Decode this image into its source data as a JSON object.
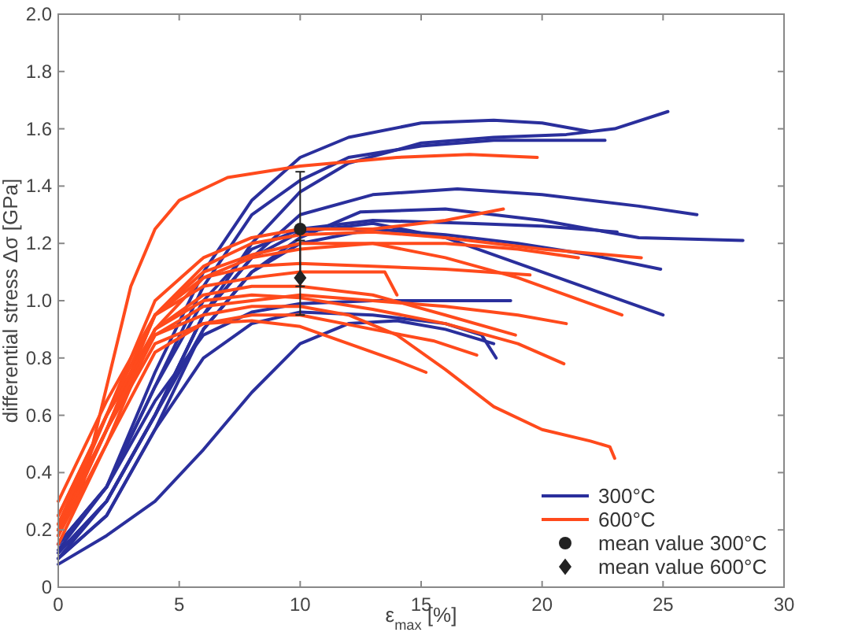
{
  "chart_data": {
    "type": "line",
    "xlabel": "ε$_{max}$ [%]",
    "ylabel": "differential stress  Δσ [GPa]",
    "xlim": [
      0,
      30
    ],
    "xticks": [
      0,
      5,
      10,
      15,
      20,
      25,
      30
    ],
    "ylim": [
      0,
      2
    ],
    "yticks": [
      0,
      0.2,
      0.4,
      0.6,
      0.8,
      {
        "value": 1,
        "label": "1.0"
      },
      1.2,
      1.4,
      1.6,
      1.8,
      {
        "value": 2,
        "label": "2.0"
      }
    ],
    "grid": false,
    "legend": "bottom right",
    "line_style": "solid",
    "series": [
      {
        "name": "300°C",
        "color": "#2a2f9c",
        "x": [
          0,
          2,
          4,
          6,
          8,
          10,
          12,
          15,
          18,
          20,
          22
        ],
        "values": [
          0.15,
          0.35,
          0.75,
          1.1,
          1.35,
          1.5,
          1.57,
          1.62,
          1.63,
          1.62,
          1.59
        ]
      },
      {
        "color": "#2a2f9c",
        "x": [
          0,
          2,
          4,
          6,
          8,
          10,
          12,
          15,
          18,
          21,
          23,
          25.2
        ],
        "values": [
          0.12,
          0.3,
          0.6,
          0.95,
          1.2,
          1.38,
          1.48,
          1.55,
          1.57,
          1.58,
          1.6,
          1.66
        ]
      },
      {
        "color": "#2a2f9c",
        "x": [
          0,
          2,
          4,
          6,
          8,
          10,
          12,
          15,
          18,
          22.6
        ],
        "values": [
          0.13,
          0.35,
          0.7,
          1.05,
          1.3,
          1.42,
          1.5,
          1.54,
          1.56,
          1.56
        ]
      },
      {
        "color": "#2a2f9c",
        "x": [
          0,
          2,
          4,
          6,
          8,
          10,
          13,
          16.5,
          20,
          24,
          26.4
        ],
        "values": [
          0.12,
          0.3,
          0.6,
          0.95,
          1.15,
          1.3,
          1.37,
          1.39,
          1.37,
          1.33,
          1.3
        ]
      },
      {
        "color": "#2a2f9c",
        "x": [
          0,
          2,
          4,
          6,
          8,
          10,
          12.5,
          16,
          20,
          24,
          28.3
        ],
        "values": [
          0.1,
          0.25,
          0.55,
          0.9,
          1.1,
          1.22,
          1.31,
          1.32,
          1.28,
          1.22,
          1.21
        ]
      },
      {
        "color": "#2a2f9c",
        "x": [
          0,
          2,
          4,
          6,
          8,
          10,
          13,
          16,
          19,
          22,
          25
        ],
        "values": [
          0.1,
          0.3,
          0.6,
          0.95,
          1.15,
          1.24,
          1.27,
          1.22,
          1.13,
          1.04,
          0.95
        ]
      },
      {
        "color": "#2a2f9c",
        "x": [
          0,
          2,
          4,
          6,
          8,
          10,
          13,
          17,
          20,
          23.1
        ],
        "values": [
          0.15,
          0.35,
          0.7,
          1.0,
          1.18,
          1.25,
          1.28,
          1.27,
          1.26,
          1.24
        ]
      },
      {
        "color": "#2a2f9c",
        "x": [
          0,
          2,
          4,
          6,
          8,
          10,
          13,
          16,
          19,
          22,
          24.9
        ],
        "values": [
          0.12,
          0.3,
          0.6,
          0.9,
          1.1,
          1.2,
          1.25,
          1.23,
          1.2,
          1.16,
          1.11
        ]
      },
      {
        "color": "#2a2f9c",
        "x": [
          0,
          2,
          4,
          6,
          8,
          10,
          13,
          16,
          17.5,
          18.1
        ],
        "values": [
          0.1,
          0.25,
          0.55,
          0.8,
          0.92,
          0.96,
          0.95,
          0.92,
          0.88,
          0.8
        ]
      },
      {
        "color": "#2a2f9c",
        "x": [
          0,
          2,
          4,
          6,
          8,
          10,
          13,
          16,
          18.7
        ],
        "values": [
          0.15,
          0.35,
          0.65,
          0.88,
          0.96,
          0.99,
          1.0,
          1.0,
          1.0
        ]
      },
      {
        "color": "#2a2f9c",
        "x": [
          0,
          2,
          4,
          6,
          8,
          10,
          12,
          14,
          16,
          18
        ],
        "values": [
          0.08,
          0.18,
          0.3,
          0.48,
          0.68,
          0.85,
          0.92,
          0.93,
          0.9,
          0.85
        ]
      },
      {
        "name": "600°C",
        "color": "#ff4a1c",
        "x": [
          0,
          1,
          2,
          3,
          4,
          5,
          7,
          10,
          14,
          17,
          19.8
        ],
        "values": [
          0.2,
          0.35,
          0.7,
          1.05,
          1.25,
          1.35,
          1.43,
          1.47,
          1.5,
          1.51,
          1.5
        ]
      },
      {
        "color": "#ff4a1c",
        "x": [
          0,
          2,
          4,
          6,
          8,
          10,
          13,
          16,
          18.4
        ],
        "values": [
          0.25,
          0.6,
          1.0,
          1.15,
          1.22,
          1.25,
          1.25,
          1.28,
          1.32
        ]
      },
      {
        "color": "#ff4a1c",
        "x": [
          0,
          2,
          4,
          6,
          8,
          10,
          13,
          16,
          20,
          24.1
        ],
        "values": [
          0.2,
          0.55,
          0.95,
          1.12,
          1.2,
          1.23,
          1.24,
          1.22,
          1.18,
          1.15
        ]
      },
      {
        "color": "#ff4a1c",
        "x": [
          0,
          2,
          4,
          6,
          8,
          10,
          13,
          16,
          19,
          23.3
        ],
        "values": [
          0.18,
          0.55,
          0.95,
          1.1,
          1.16,
          1.2,
          1.2,
          1.15,
          1.08,
          0.95
        ]
      },
      {
        "color": "#ff4a1c",
        "x": [
          0,
          2,
          4,
          6,
          8,
          10,
          12,
          14,
          16,
          18,
          20,
          22,
          22.8,
          23
        ],
        "values": [
          0.2,
          0.6,
          0.88,
          0.95,
          0.98,
          0.98,
          0.95,
          0.88,
          0.76,
          0.63,
          0.55,
          0.51,
          0.49,
          0.45
        ]
      },
      {
        "color": "#ff4a1c",
        "x": [
          0,
          2,
          4,
          6,
          8,
          10,
          13,
          16,
          19,
          20.9
        ],
        "values": [
          0.25,
          0.6,
          0.9,
          1.0,
          1.02,
          1.01,
          0.97,
          0.92,
          0.85,
          0.78
        ]
      },
      {
        "color": "#ff4a1c",
        "x": [
          0,
          2,
          4,
          6,
          8,
          10,
          13,
          16,
          19,
          21
        ],
        "values": [
          0.22,
          0.55,
          0.88,
          0.98,
          1.0,
          1.02,
          1.0,
          0.98,
          0.95,
          0.92
        ]
      },
      {
        "color": "#ff4a1c",
        "x": [
          0,
          2,
          4,
          6,
          8,
          10,
          13,
          15.5,
          17.3
        ],
        "values": [
          0.15,
          0.5,
          0.82,
          0.92,
          0.95,
          0.95,
          0.9,
          0.86,
          0.81
        ]
      },
      {
        "color": "#ff4a1c",
        "x": [
          0,
          2,
          4,
          6,
          8,
          10,
          12,
          14,
          15.2
        ],
        "values": [
          0.2,
          0.55,
          0.85,
          0.92,
          0.93,
          0.91,
          0.85,
          0.79,
          0.75
        ]
      },
      {
        "color": "#ff4a1c",
        "x": [
          0,
          2,
          4,
          6,
          8,
          10,
          13,
          16,
          18.9
        ],
        "values": [
          0.18,
          0.55,
          0.9,
          1.02,
          1.05,
          1.05,
          1.02,
          0.95,
          0.88
        ]
      },
      {
        "color": "#ff4a1c",
        "x": [
          0,
          2,
          4,
          6,
          8,
          10,
          13,
          16,
          19.5
        ],
        "values": [
          0.22,
          0.6,
          0.95,
          1.08,
          1.12,
          1.13,
          1.12,
          1.11,
          1.09
        ]
      },
      {
        "color": "#ff4a1c",
        "x": [
          0,
          2,
          4,
          6,
          8,
          10,
          13.5,
          14
        ],
        "values": [
          0.3,
          0.65,
          0.95,
          1.05,
          1.08,
          1.1,
          1.1,
          1.02
        ]
      },
      {
        "color": "#ff4a1c",
        "x": [
          0,
          2,
          4,
          6,
          8,
          10,
          13,
          16,
          19,
          21.5
        ],
        "values": [
          0.18,
          0.5,
          0.9,
          1.08,
          1.15,
          1.18,
          1.2,
          1.2,
          1.18,
          1.15
        ]
      },
      {
        "name": "mean value 300°C",
        "type": "scatter",
        "marker": "circle",
        "color": "#222222",
        "x": [
          10
        ],
        "values": [
          1.25
        ],
        "errors": [
          0.2
        ]
      },
      {
        "name": "mean value 600°C",
        "type": "scatter",
        "marker": "diamond",
        "color": "#222222",
        "x": [
          10
        ],
        "values": [
          1.08
        ],
        "errors": [
          0.13
        ]
      }
    ]
  }
}
